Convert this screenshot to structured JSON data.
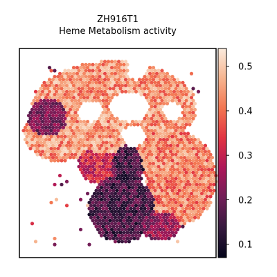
{
  "chart_data": {
    "type": "heatmap",
    "title": "ZH916T1",
    "subtitle": "Heme Metabolism activity",
    "xlabel": "",
    "ylabel": "",
    "colorbar": {
      "min": 0.07,
      "max": 0.54,
      "ticks": [
        0.1,
        0.2,
        0.3,
        0.4,
        0.5
      ],
      "tick_labels": [
        "0.1",
        "0.2",
        "0.3",
        "0.4",
        "0.5"
      ],
      "colormap": "rocket",
      "stops": [
        "#03051a",
        "#36193e",
        "#701f57",
        "#ad1759",
        "#e13342",
        "#f37651",
        "#f6b48f",
        "#faebdd"
      ]
    },
    "grid": false,
    "tissue_regions": {
      "description_units": "normalized spatial coordinates (0-1) within the spot array",
      "upper_band": {
        "typical_value": 0.44
      },
      "left_dark_cluster": {
        "typical_value": 0.22
      },
      "right_lobe": {
        "typical_value": 0.42
      },
      "lower_dark_region": {
        "typical_value": 0.16
      },
      "bottom_right_cluster": {
        "typical_value": 0.24
      }
    }
  }
}
